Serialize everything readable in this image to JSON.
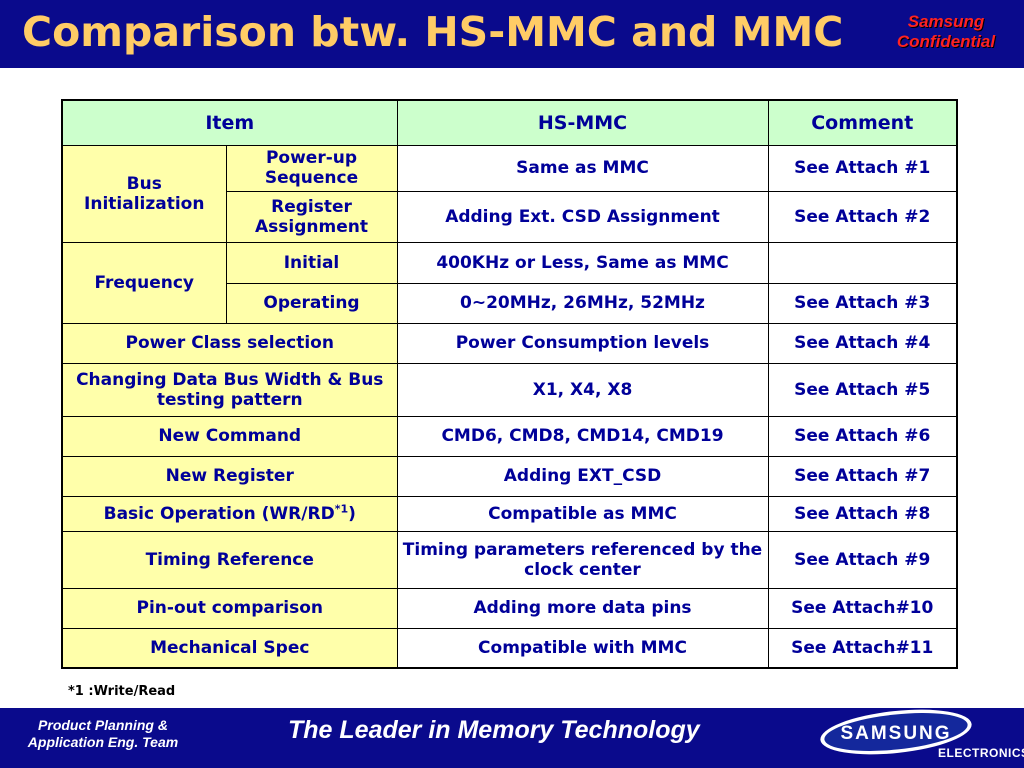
{
  "title": "Comparison btw. HS-MMC and MMC",
  "confidential": {
    "line1": "Samsung",
    "line2": "Confidential"
  },
  "table": {
    "headers": {
      "item": "Item",
      "hsmmc": "HS-MMC",
      "comment": "Comment"
    },
    "rows": [
      {
        "group": "Bus Initialization",
        "sub": "Power-up Sequence",
        "value": "Same as MMC",
        "comment": "See Attach #1"
      },
      {
        "sub": "Register Assignment",
        "value": "Adding Ext. CSD Assignment",
        "comment": "See Attach #2"
      },
      {
        "group": "Frequency",
        "sub": "Initial",
        "value": "400KHz or Less, Same as MMC",
        "comment": ""
      },
      {
        "sub": "Operating",
        "value": "0~20MHz, 26MHz, 52MHz",
        "comment": "See Attach #3"
      },
      {
        "item": "Power Class selection",
        "value": "Power Consumption levels",
        "comment": "See Attach #4"
      },
      {
        "item": "Changing Data Bus Width & Bus testing pattern",
        "value": "X1, X4, X8",
        "comment": "See Attach #5"
      },
      {
        "item": "New Command",
        "value": "CMD6, CMD8, CMD14, CMD19",
        "comment": "See Attach #6"
      },
      {
        "item": "New Register",
        "value": "Adding EXT_CSD",
        "comment": "See Attach #7"
      },
      {
        "item": "Basic Operation (WR/RD",
        "item_sup": "*1",
        "item_end": ")",
        "value": "Compatible as MMC",
        "comment": "See Attach #8"
      },
      {
        "item": "Timing Reference",
        "value": "Timing parameters referenced by the clock center",
        "comment": "See Attach #9"
      },
      {
        "item": "Pin-out comparison",
        "value": "Adding more data pins",
        "comment": "See Attach#10"
      },
      {
        "item": "Mechanical Spec",
        "value": "Compatible with MMC",
        "comment": "See Attach#11"
      }
    ]
  },
  "footnote": "*1 :Write/Read",
  "footer": {
    "left_line1": "Product Planning  &",
    "left_line2": "Application Eng. Team",
    "tagline": "The Leader in Memory Technology",
    "brand": "SAMSUNG",
    "brand_sub": "ELECTRONICS"
  },
  "colors": {
    "bar": "#0a0a8c",
    "title": "#ffcc66",
    "header_bg": "#ccffcc",
    "item_bg": "#ffffaa",
    "cell_text": "#000099",
    "confidential": "#ff2222"
  }
}
